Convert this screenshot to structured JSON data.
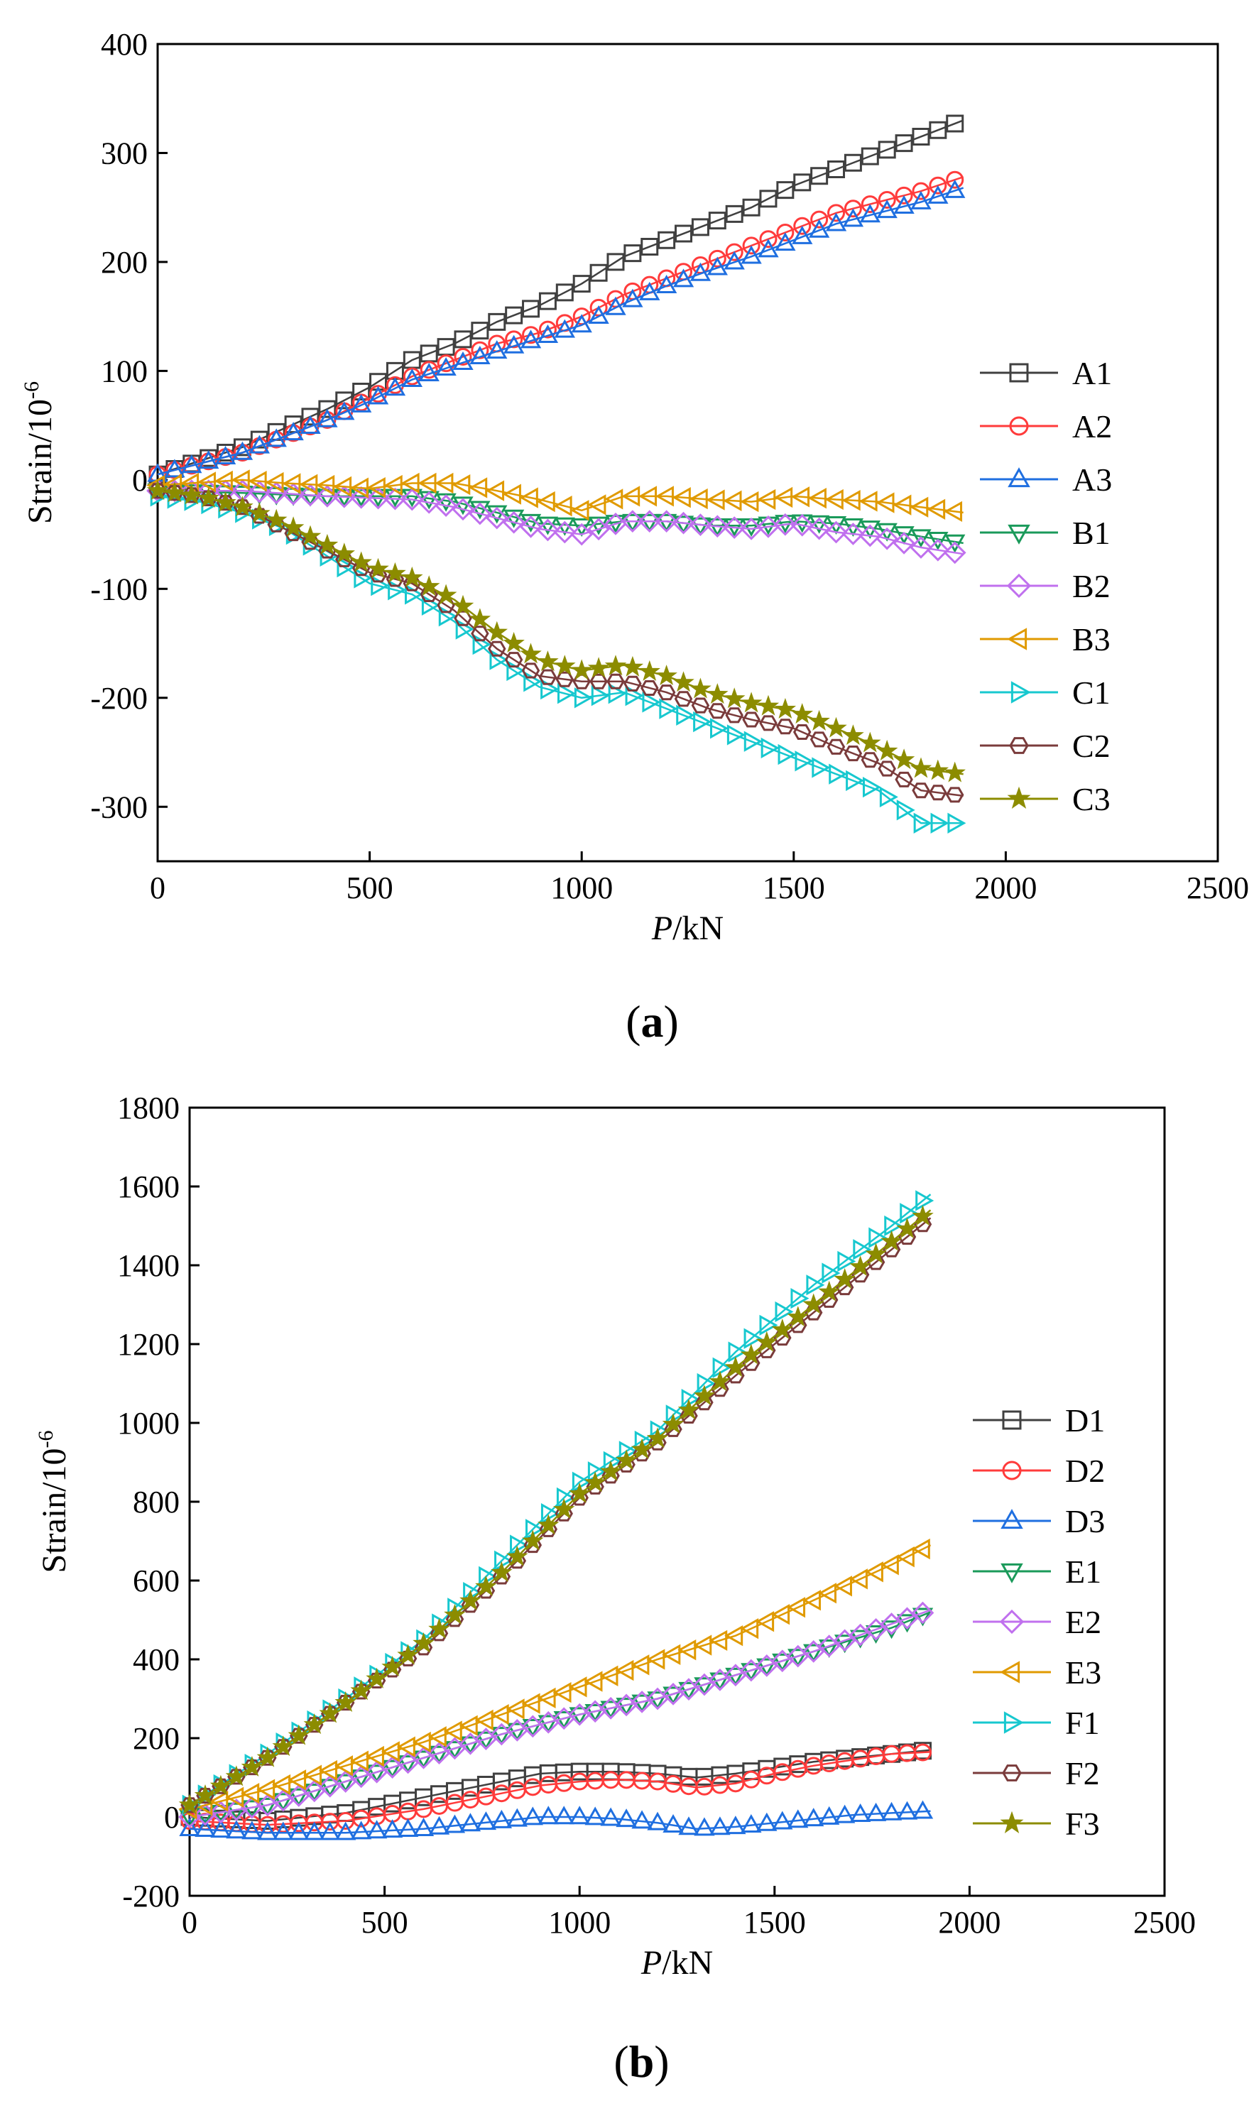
{
  "chart_data": [
    {
      "type": "scatter",
      "panel_label": "a",
      "xlabel_italic": "P",
      "xlabel_rest": "/kN",
      "ylabel": "Strain/10",
      "ylabel_sup": "-6",
      "xlim": [
        0,
        2500
      ],
      "ylim": [
        -350,
        400
      ],
      "xticks": [
        0,
        500,
        1000,
        1500,
        2000,
        2500
      ],
      "yticks": [
        -300,
        -200,
        -100,
        0,
        100,
        200,
        300,
        400
      ],
      "grid": false,
      "legend_position": "right",
      "series": [
        {
          "name": "A1",
          "color": "#404040",
          "marker": "square",
          "x": [
            0,
            200,
            400,
            500,
            600,
            700,
            800,
            900,
            1000,
            1100,
            1200,
            1300,
            1400,
            1500,
            1600,
            1700,
            1800,
            1900
          ],
          "y": [
            5,
            30,
            65,
            85,
            110,
            125,
            145,
            160,
            180,
            205,
            220,
            235,
            250,
            270,
            285,
            300,
            315,
            330
          ]
        },
        {
          "name": "A2",
          "color": "#ff3b3b",
          "marker": "circle",
          "x": [
            0,
            200,
            400,
            500,
            600,
            700,
            800,
            900,
            1000,
            1100,
            1200,
            1300,
            1400,
            1500,
            1600,
            1700,
            1800,
            1900
          ],
          "y": [
            5,
            25,
            55,
            75,
            95,
            110,
            125,
            135,
            150,
            170,
            185,
            200,
            215,
            230,
            245,
            255,
            265,
            278
          ]
        },
        {
          "name": "A3",
          "color": "#1f6fe0",
          "marker": "triangle-up",
          "x": [
            0,
            200,
            400,
            500,
            600,
            700,
            800,
            900,
            1000,
            1100,
            1200,
            1300,
            1400,
            1500,
            1600,
            1700,
            1800,
            1900
          ],
          "y": [
            5,
            25,
            55,
            72,
            92,
            105,
            118,
            130,
            142,
            162,
            178,
            192,
            205,
            220,
            235,
            245,
            255,
            268
          ]
        },
        {
          "name": "B1",
          "color": "#1a9a5a",
          "marker": "triangle-down",
          "x": [
            0,
            200,
            400,
            600,
            700,
            800,
            900,
            1000,
            1100,
            1200,
            1300,
            1400,
            1500,
            1600,
            1700,
            1800,
            1900
          ],
          "y": [
            -10,
            -12,
            -15,
            -15,
            -20,
            -30,
            -40,
            -42,
            -38,
            -38,
            -42,
            -42,
            -38,
            -40,
            -45,
            -52,
            -58
          ]
        },
        {
          "name": "B2",
          "color": "#c070ee",
          "marker": "diamond",
          "x": [
            0,
            200,
            400,
            600,
            700,
            800,
            900,
            1000,
            1100,
            1200,
            1300,
            1400,
            1500,
            1600,
            1700,
            1800,
            1900
          ],
          "y": [
            -10,
            -10,
            -15,
            -18,
            -25,
            -35,
            -45,
            -50,
            -38,
            -38,
            -42,
            -45,
            -40,
            -48,
            -52,
            -62,
            -68
          ]
        },
        {
          "name": "B3",
          "color": "#e09a00",
          "marker": "triangle-left",
          "x": [
            0,
            200,
            300,
            400,
            500,
            600,
            700,
            800,
            900,
            1000,
            1100,
            1200,
            1300,
            1400,
            1500,
            1600,
            1700,
            1800,
            1900
          ],
          "y": [
            -5,
            0,
            -3,
            -5,
            -8,
            -3,
            -3,
            -10,
            -18,
            -28,
            -15,
            -15,
            -18,
            -20,
            -15,
            -18,
            -20,
            -25,
            -30
          ]
        },
        {
          "name": "C1",
          "color": "#17c8cf",
          "marker": "triangle-right",
          "x": [
            0,
            100,
            200,
            300,
            400,
            500,
            600,
            700,
            800,
            900,
            1000,
            1100,
            1200,
            1300,
            1400,
            1500,
            1600,
            1700,
            1800,
            1900
          ],
          "y": [
            -15,
            -20,
            -30,
            -45,
            -70,
            -95,
            -105,
            -130,
            -165,
            -190,
            -200,
            -195,
            -210,
            -225,
            -240,
            -255,
            -270,
            -285,
            -315,
            -315
          ]
        },
        {
          "name": "C2",
          "color": "#7a3b3b",
          "marker": "hexagon",
          "x": [
            0,
            100,
            200,
            300,
            400,
            500,
            600,
            700,
            800,
            900,
            1000,
            1100,
            1200,
            1300,
            1400,
            1500,
            1600,
            1700,
            1800,
            1900
          ],
          "y": [
            -10,
            -15,
            -25,
            -45,
            -65,
            -85,
            -95,
            -120,
            -155,
            -180,
            -185,
            -185,
            -195,
            -210,
            -220,
            -228,
            -245,
            -260,
            -285,
            -290
          ]
        },
        {
          "name": "C3",
          "color": "#8c8c00",
          "marker": "star",
          "x": [
            0,
            100,
            200,
            300,
            400,
            500,
            600,
            700,
            800,
            900,
            1000,
            1100,
            1200,
            1300,
            1400,
            1500,
            1600,
            1700,
            1800,
            1900
          ],
          "y": [
            -10,
            -15,
            -25,
            -40,
            -60,
            -80,
            -90,
            -110,
            -140,
            -165,
            -175,
            -170,
            -180,
            -195,
            -205,
            -212,
            -228,
            -245,
            -265,
            -270
          ]
        }
      ]
    },
    {
      "type": "scatter",
      "panel_label": "b",
      "xlabel_italic": "P",
      "xlabel_rest": "/kN",
      "ylabel": "Strain/10",
      "ylabel_sup": "-6",
      "xlim": [
        0,
        2500
      ],
      "ylim": [
        -200,
        1800
      ],
      "xticks": [
        0,
        500,
        1000,
        1500,
        2000,
        2500
      ],
      "yticks": [
        -200,
        0,
        200,
        400,
        600,
        800,
        1000,
        1200,
        1400,
        1600,
        1800
      ],
      "grid": false,
      "legend_position": "right",
      "series": [
        {
          "name": "D1",
          "color": "#404040",
          "marker": "square",
          "x": [
            0,
            200,
            400,
            600,
            800,
            900,
            1000,
            1100,
            1200,
            1300,
            1400,
            1500,
            1600,
            1700,
            1800,
            1900
          ],
          "y": [
            0,
            -10,
            10,
            50,
            90,
            110,
            115,
            115,
            110,
            100,
            110,
            125,
            140,
            150,
            160,
            170
          ]
        },
        {
          "name": "D2",
          "color": "#ff3b3b",
          "marker": "circle",
          "x": [
            0,
            200,
            400,
            600,
            800,
            900,
            1000,
            1100,
            1200,
            1300,
            1400,
            1500,
            1600,
            1700,
            1800,
            1900
          ],
          "y": [
            -10,
            -20,
            -10,
            20,
            60,
            80,
            90,
            95,
            90,
            75,
            85,
            110,
            130,
            145,
            160,
            165
          ]
        },
        {
          "name": "D3",
          "color": "#1f6fe0",
          "marker": "triangle-up",
          "x": [
            0,
            200,
            400,
            600,
            800,
            900,
            1000,
            1100,
            1200,
            1300,
            1400,
            1500,
            1600,
            1700,
            1800,
            1900
          ],
          "y": [
            -30,
            -40,
            -40,
            -30,
            -10,
            0,
            0,
            -5,
            -15,
            -30,
            -25,
            -15,
            -5,
            5,
            10,
            15
          ]
        },
        {
          "name": "E1",
          "color": "#1a9a5a",
          "marker": "triangle-down",
          "x": [
            0,
            200,
            400,
            600,
            800,
            1000,
            1200,
            1400,
            1600,
            1800,
            1900
          ],
          "y": [
            0,
            30,
            90,
            150,
            210,
            260,
            300,
            360,
            420,
            480,
            520
          ]
        },
        {
          "name": "E2",
          "color": "#c070ee",
          "marker": "diamond",
          "x": [
            0,
            200,
            400,
            600,
            800,
            1000,
            1200,
            1400,
            1600,
            1800,
            1900
          ],
          "y": [
            0,
            30,
            90,
            150,
            210,
            260,
            300,
            360,
            420,
            490,
            525
          ]
        },
        {
          "name": "E3",
          "color": "#e09a00",
          "marker": "triangle-left",
          "x": [
            0,
            200,
            400,
            600,
            800,
            1000,
            1200,
            1400,
            1600,
            1800,
            1900
          ],
          "y": [
            20,
            70,
            130,
            190,
            260,
            330,
            400,
            460,
            550,
            640,
            690
          ]
        },
        {
          "name": "F1",
          "color": "#17c8cf",
          "marker": "triangle-right",
          "x": [
            0,
            200,
            400,
            600,
            800,
            1000,
            1200,
            1400,
            1600,
            1800,
            1900
          ],
          "y": [
            30,
            160,
            300,
            450,
            650,
            850,
            980,
            1180,
            1350,
            1500,
            1580
          ]
        },
        {
          "name": "F2",
          "color": "#7a3b3b",
          "marker": "hexagon",
          "x": [
            0,
            200,
            400,
            600,
            800,
            1000,
            1200,
            1400,
            1600,
            1800,
            1900
          ],
          "y": [
            30,
            150,
            290,
            430,
            610,
            810,
            950,
            1120,
            1280,
            1440,
            1520
          ]
        },
        {
          "name": "F3",
          "color": "#8c8c00",
          "marker": "star",
          "x": [
            0,
            200,
            400,
            600,
            800,
            1000,
            1200,
            1400,
            1600,
            1800,
            1900
          ],
          "y": [
            30,
            150,
            290,
            440,
            620,
            820,
            960,
            1140,
            1300,
            1460,
            1540
          ]
        }
      ]
    }
  ]
}
